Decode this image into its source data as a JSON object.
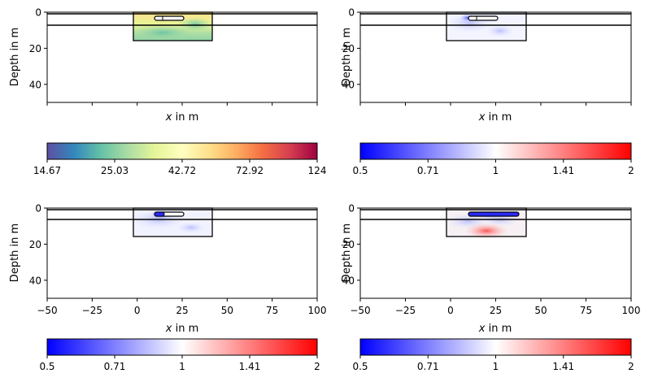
{
  "chart_data": [
    {
      "type": "heatmap",
      "xlabel_var": "x",
      "xlabel_rest": " in m",
      "ylabel": "Depth in m",
      "xlim": [
        -50,
        100
      ],
      "ylim": [
        0,
        50
      ],
      "xticks": [],
      "xticks_hidden": [
        -50,
        -25,
        0,
        25,
        50,
        75,
        100
      ],
      "yticks": [
        "0",
        "20",
        "40"
      ],
      "colormap": "Spectral_r",
      "colorbar": {
        "ticks": [
          "14.67",
          "25.03",
          "42.72",
          "72.92",
          "124"
        ]
      }
    },
    {
      "type": "heatmap",
      "xlabel_var": "x",
      "xlabel_rest": " in m",
      "ylabel": "Depth in m",
      "xlim": [
        -50,
        100
      ],
      "ylim": [
        0,
        50
      ],
      "xticks": [],
      "xticks_hidden": [
        -50,
        -25,
        0,
        25,
        50,
        75,
        100
      ],
      "yticks": [
        "0",
        "20",
        "40"
      ],
      "colormap": "bwr",
      "colorbar": {
        "ticks": [
          "0.5",
          "0.71",
          "1",
          "1.41",
          "2"
        ]
      }
    },
    {
      "type": "heatmap",
      "xlabel_var": "x",
      "xlabel_rest": " in m",
      "ylabel": "Depth in m",
      "xlim": [
        -50,
        100
      ],
      "ylim": [
        0,
        50
      ],
      "xticks": [
        "−50",
        "−25",
        "0",
        "25",
        "50",
        "75",
        "100"
      ],
      "yticks": [
        "0",
        "20",
        "40"
      ],
      "colormap": "bwr",
      "colorbar": {
        "ticks": [
          "0.5",
          "0.71",
          "1",
          "1.41",
          "2"
        ]
      }
    },
    {
      "type": "heatmap",
      "xlabel_var": "x",
      "xlabel_rest": " in m",
      "ylabel": "Depth in m",
      "xlim": [
        -50,
        100
      ],
      "ylim": [
        0,
        50
      ],
      "xticks": [
        "−50",
        "−25",
        "0",
        "25",
        "50",
        "75",
        "100"
      ],
      "yticks": [
        "0",
        "20",
        "40"
      ],
      "colormap": "bwr",
      "colorbar": {
        "ticks": [
          "0.5",
          "0.71",
          "1",
          "1.41",
          "2"
        ]
      }
    }
  ]
}
